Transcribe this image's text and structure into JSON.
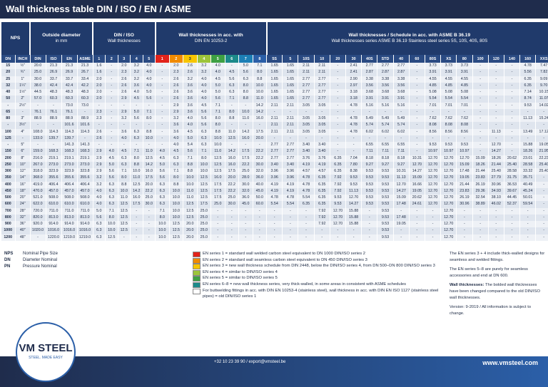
{
  "header": {
    "title": "Wall thickness table DIN / ISO / EN / ASME"
  },
  "table": {
    "groups": [
      {
        "title": "NPS"
      },
      {
        "title": "Outside diameter",
        "subtitle": "in mm"
      },
      {
        "title": "DIN / ISO",
        "subtitle": "Wall thicknesses"
      },
      {
        "title": "Wall thicknesses in acc. with",
        "subtitle": "DIN EN 10253-2"
      },
      {
        "title": "Wall thicknesses / Schedule in acc. with ASME B 36.19",
        "subtitle": "Wall thicknesses series ASME B 36.19 Stainless steel series 5S, 10S, 40S, 80S"
      }
    ],
    "columns": [
      "DN",
      "INCH",
      "DIN",
      "ISO",
      "EN",
      "ASME",
      "1",
      "2",
      "3",
      "4",
      "5",
      "1",
      "2",
      "3",
      "4",
      "5",
      "6",
      "7",
      "8",
      "5S",
      "5",
      "10S",
      "10",
      "20",
      "30",
      "40S",
      "STD",
      "40",
      "60",
      "80S",
      "XS",
      "80",
      "100",
      "120",
      "140",
      "160",
      "XXS"
    ],
    "rows": [
      [
        "15",
        "½\"",
        "20.0",
        "21.3",
        "21.3",
        "21.3",
        "1.6",
        "-",
        "2.0",
        "3.2",
        "4.0",
        "-",
        "2.0",
        "2.6",
        "3.2",
        "4.0",
        "-",
        "5.0",
        "7.1",
        "1.65",
        "1.65",
        "2.11",
        "2.11",
        "-",
        "2.41",
        "2.77",
        "2.77",
        "2.77",
        "-",
        "3.73",
        "3.73",
        "3.73",
        "-",
        "-",
        "-",
        "4.78",
        "7.47"
      ],
      [
        "20",
        "¾\"",
        "25.0",
        "26.9",
        "26.9",
        "26.7",
        "1.6",
        "-",
        "2.3",
        "3.2",
        "4.0",
        "-",
        "2.3",
        "2.6",
        "3.2",
        "4.0",
        "4.5",
        "5.6",
        "8.0",
        "1.65",
        "1.65",
        "2.11",
        "2.11",
        "-",
        "2.41",
        "2.87",
        "2.87",
        "2.87",
        "-",
        "3.91",
        "3.91",
        "3.91",
        "-",
        "-",
        "-",
        "5.56",
        "7.82"
      ],
      [
        "25",
        "1\"",
        "30.0",
        "33.7",
        "33.7",
        "33.4",
        "2.0",
        "-",
        "2.6",
        "3.2",
        "4.0",
        "-",
        "2.6",
        "3.2",
        "4.0",
        "4.5",
        "5.6",
        "6.3",
        "8.8",
        "1.65",
        "1.65",
        "2.77",
        "2.77",
        "-",
        "2.90",
        "3.38",
        "3.38",
        "3.38",
        "-",
        "4.55",
        "4.55",
        "4.55",
        "-",
        "-",
        "-",
        "6.35",
        "9.09"
      ],
      [
        "32",
        "1¼\"",
        "38.0",
        "42.4",
        "42.4",
        "42.2",
        "2.0",
        "-",
        "2.6",
        "3.6",
        "4.0",
        "-",
        "2.6",
        "3.6",
        "4.0",
        "5.0",
        "6.3",
        "8.0",
        "10.0",
        "1.65",
        "1.65",
        "2.77",
        "2.77",
        "-",
        "2.97",
        "3.56",
        "3.56",
        "3.56",
        "-",
        "4.85",
        "4.85",
        "4.85",
        "-",
        "-",
        "-",
        "6.35",
        "9.70"
      ],
      [
        "40",
        "1½\"",
        "44.5",
        "48.3",
        "48.3",
        "48.3",
        "2.0",
        "-",
        "2.6",
        "4.0",
        "5.0",
        "-",
        "2.6",
        "3.6",
        "4.0",
        "5.0",
        "6.3",
        "8.0",
        "10.0",
        "1.65",
        "1.65",
        "2.77",
        "2.77",
        "-",
        "3.18",
        "3.68",
        "3.68",
        "3.68",
        "-",
        "5.08",
        "5.08",
        "5.08",
        "-",
        "-",
        "-",
        "7.14",
        "10.15"
      ],
      [
        "50",
        "2\"",
        "57.0",
        "60.3",
        "60.3",
        "60.3",
        "2.0",
        "-",
        "2.9",
        "4.5",
        "5.6",
        "-",
        "2.6",
        "3.6",
        "4.0",
        "5.6",
        "7.1",
        "8.8",
        "11.0",
        "1.65",
        "1.65",
        "2.77",
        "2.77",
        "-",
        "3.18",
        "3.91",
        "3.91",
        "3.91",
        "-",
        "5.54",
        "5.54",
        "5.54",
        "-",
        "-",
        "-",
        "8.74",
        "11.07"
      ],
      [
        "-",
        "2½\"",
        "-",
        "-",
        "73.0",
        "73.0",
        "-",
        "-",
        "-",
        "-",
        "-",
        "-",
        "2.9",
        "3.6",
        "4.5",
        "7.1",
        "-",
        "-",
        "14.2",
        "2.11",
        "2.11",
        "3.05",
        "3.05",
        "-",
        "4.78",
        "5.16",
        "5.16",
        "5.16",
        "-",
        "7.01",
        "7.01",
        "7.01",
        "-",
        "-",
        "-",
        "9.53",
        "14.02"
      ],
      [
        "65",
        "-",
        "76.1",
        "76.1",
        "76.1",
        "-",
        "2.3",
        "-",
        "2.9",
        "5.0",
        "7.1",
        "-",
        "2.9",
        "3.6",
        "5.6",
        "7.1",
        "8.0",
        "10.0",
        "14.2",
        "-",
        "-",
        "-",
        "-",
        "-",
        "-",
        "-",
        "-",
        "-",
        "-",
        "-",
        "-",
        "-",
        "-",
        "-",
        "-",
        "-",
        "-"
      ],
      [
        "80",
        "3\"",
        "88.9",
        "88.9",
        "88.9",
        "88.9",
        "2.3",
        "-",
        "3.2",
        "5.6",
        "8.0",
        "-",
        "3.2",
        "4.0",
        "5.6",
        "8.0",
        "8.8",
        "11.0",
        "16.0",
        "2.11",
        "2.11",
        "3.05",
        "3.05",
        "-",
        "4.78",
        "5.49",
        "5.49",
        "5.49",
        "-",
        "7.62",
        "7.62",
        "7.62",
        "-",
        "-",
        "-",
        "11.13",
        "15.24"
      ],
      [
        "-",
        "3½\"",
        "-",
        "-",
        "101.6",
        "101.6",
        "-",
        "-",
        "-",
        "-",
        "-",
        "-",
        "3.6",
        "4.0",
        "5.6",
        "8.0",
        "-",
        "-",
        "-",
        "2.11",
        "2.11",
        "3.05",
        "3.05",
        "-",
        "4.78",
        "5.74",
        "5.74",
        "5.74",
        "-",
        "8.08",
        "8.08",
        "8.08",
        "-",
        "-",
        "-",
        "-",
        "-"
      ],
      [
        "100",
        "4\"",
        "108.0",
        "114.3",
        "114.3",
        "114.3",
        "2.6",
        "-",
        "3.6",
        "6.3",
        "8.8",
        "-",
        "3.6",
        "4.5",
        "6.3",
        "8.8",
        "11.0",
        "14.2",
        "17.5",
        "2.11",
        "2.11",
        "3.05",
        "3.05",
        "-",
        "4.78",
        "6.02",
        "6.02",
        "6.02",
        "-",
        "8.56",
        "8.56",
        "8.56",
        "-",
        "11.13",
        "-",
        "13.49",
        "17.12"
      ],
      [
        "125",
        "-",
        "133.0",
        "139.7",
        "139.7",
        "-",
        "2.6",
        "-",
        "4.0",
        "6.3",
        "10.0",
        "-",
        "4.0",
        "5.0",
        "6.3",
        "10.0",
        "12.5",
        "16.0",
        "20.0",
        "-",
        "-",
        "-",
        "-",
        "-",
        "-",
        "-",
        "-",
        "-",
        "-",
        "-",
        "-",
        "-",
        "-",
        "-",
        "-",
        "-",
        "-"
      ],
      [
        "-",
        "5\"",
        "-",
        "-",
        "141.3",
        "141.3",
        "-",
        "-",
        "-",
        "-",
        "-",
        "-",
        "4.0",
        "5.4",
        "6.3",
        "10.0",
        "-",
        "-",
        "-",
        "2.77",
        "2.77",
        "3.40",
        "3.40",
        "-",
        "-",
        "6.55",
        "6.55",
        "6.55",
        "-",
        "9.53",
        "9.53",
        "9.53",
        "-",
        "12.70",
        "-",
        "15.88",
        "19.05"
      ],
      [
        "150",
        "6\"",
        "159.0",
        "168.3",
        "168.3",
        "168.3",
        "2.9",
        "4.0",
        "4.5",
        "7.1",
        "11.0",
        "4.0",
        "4.5",
        "5.6",
        "7.1",
        "11.0",
        "14.2",
        "17.5",
        "22.2",
        "2.77",
        "2.77",
        "3.40",
        "3.40",
        "-",
        "-",
        "7.11",
        "7.11",
        "7.11",
        "-",
        "10.97",
        "10.97",
        "10.97",
        "-",
        "14.27",
        "-",
        "18.26",
        "21.95"
      ],
      [
        "200",
        "8\"",
        "216.0",
        "219.1",
        "219.1",
        "219.1",
        "2.9",
        "4.5",
        "6.3",
        "8.0",
        "12.5",
        "4.5",
        "6.3",
        "7.1",
        "8.0",
        "12.5",
        "16.0",
        "17.5",
        "22.2",
        "2.77",
        "2.77",
        "3.76",
        "3.76",
        "6.35",
        "7.04",
        "8.18",
        "8.18",
        "8.18",
        "10.31",
        "12.70",
        "12.70",
        "12.70",
        "15.09",
        "18.26",
        "20.62",
        "23.01",
        "22.23"
      ],
      [
        "250",
        "10\"",
        "267.0",
        "273.0",
        "273.0",
        "273.0",
        "2.9",
        "5.0",
        "6.3",
        "8.8",
        "14.2",
        "5.0",
        "6.3",
        "8.8",
        "10.0",
        "12.5",
        "16.0",
        "22.2",
        "30.0",
        "3.40",
        "3.40",
        "4.19",
        "4.19",
        "6.35",
        "7.80",
        "9.27",
        "9.27",
        "9.27",
        "12.70",
        "12.70",
        "12.70",
        "15.09",
        "18.26",
        "21.44",
        "25.40",
        "28.58",
        "25.40"
      ],
      [
        "300",
        "12\"",
        "318.0",
        "323.9",
        "323.9",
        "323.8",
        "2.9",
        "5.6",
        "7.1",
        "10.0",
        "16.0",
        "5.6",
        "7.1",
        "8.8",
        "10.0",
        "12.5",
        "17.5",
        "25.0",
        "32.0",
        "3.96",
        "3.96",
        "4.57",
        "4.57",
        "6.35",
        "8.38",
        "9.53",
        "9.53",
        "10.31",
        "14.27",
        "12.70",
        "12.70",
        "17.48",
        "21.44",
        "25.40",
        "28.58",
        "33.32",
        "25.40"
      ],
      [
        "350",
        "14\"",
        "368.0",
        "355.6",
        "355.6",
        "355.6",
        "3.2",
        "5.6",
        "8.0",
        "11.0",
        "17.5",
        "5.6",
        "8.0",
        "10.0",
        "12.5",
        "16.0",
        "20.0",
        "28.0",
        "36.0",
        "3.96",
        "3.96",
        "4.78",
        "6.35",
        "7.92",
        "9.53",
        "9.53",
        "9.53",
        "11.13",
        "15.09",
        "12.70",
        "12.70",
        "19.05",
        "23.83",
        "27.79",
        "31.75",
        "35.71",
        "-"
      ],
      [
        "400",
        "16\"",
        "419.0",
        "406.4",
        "406.4",
        "406.4",
        "3.2",
        "6.3",
        "8.8",
        "12.5",
        "20.0",
        "6.3",
        "8.8",
        "10.0",
        "12.5",
        "17.5",
        "22.2",
        "30.0",
        "40.0",
        "4.19",
        "4.19",
        "4.78",
        "6.35",
        "7.92",
        "9.53",
        "9.53",
        "9.53",
        "12.70",
        "16.66",
        "12.70",
        "12.70",
        "21.44",
        "26.19",
        "30.96",
        "36.53",
        "40.49",
        "-"
      ],
      [
        "450",
        "18\"",
        "470.0",
        "457.0",
        "457.0",
        "457.0",
        "4.0",
        "6.3",
        "10.0",
        "14.2",
        "22.2",
        "6.3",
        "10.0",
        "11.0",
        "12.5",
        "17.5",
        "22.2",
        "32.0",
        "45.0",
        "4.19",
        "4.19",
        "4.78",
        "6.35",
        "7.92",
        "11.13",
        "9.53",
        "9.53",
        "14.27",
        "19.05",
        "12.70",
        "12.70",
        "23.83",
        "29.36",
        "34.93",
        "39.67",
        "45.24",
        "-"
      ],
      [
        "500",
        "20\"",
        "521.0",
        "508.0",
        "508.0",
        "508.0",
        "4.0",
        "6.3",
        "11.0",
        "16.0",
        "25.0",
        "6.3",
        "10.0",
        "11.0",
        "12.5",
        "17.5",
        "25.0",
        "36.0",
        "50.0",
        "4.78",
        "4.78",
        "5.54",
        "6.35",
        "9.53",
        "12.70",
        "9.53",
        "9.53",
        "15.09",
        "20.62",
        "12.70",
        "12.70",
        "26.19",
        "32.54",
        "38.10",
        "44.45",
        "50.01",
        "-"
      ],
      [
        "600",
        "24\"",
        "622.0",
        "610.0",
        "610.0",
        "610.0",
        "4.0",
        "6.3",
        "12.5",
        "17.5",
        "30.0",
        "6.3",
        "10.0",
        "12.5",
        "17.5",
        "25.0",
        "30.0",
        "45.0",
        "60.0",
        "5.54",
        "5.54",
        "6.35",
        "6.35",
        "9.53",
        "14.27",
        "9.53",
        "9.53",
        "17.48",
        "24.61",
        "12.70",
        "12.70",
        "30.96",
        "38.89",
        "46.02",
        "52.37",
        "59.54",
        "-"
      ],
      [
        "700",
        "28\"",
        "720.0",
        "711.0",
        "711.0",
        "711.0",
        "5.0",
        "7.1",
        "12.5",
        "-",
        "-",
        "7.1",
        "10.0",
        "12.5",
        "25.0",
        "-",
        "-",
        "-",
        "-",
        "-",
        "-",
        "-",
        "7.92",
        "12.70",
        "15.88",
        "-",
        "9.53",
        "-",
        "-",
        "-",
        "12.70",
        "-",
        "-",
        "-",
        "-",
        "-",
        "-"
      ],
      [
        "800",
        "32\"",
        "820.0",
        "813.0",
        "813.0",
        "813.0",
        "5.6",
        "8.0",
        "12.5",
        "-",
        "-",
        "8.0",
        "10.0",
        "12.5",
        "25.0",
        "-",
        "-",
        "-",
        "-",
        "-",
        "-",
        "-",
        "7.92",
        "12.70",
        "15.88",
        "-",
        "9.53",
        "17.48",
        "-",
        "-",
        "12.70",
        "-",
        "-",
        "-",
        "-",
        "-",
        "-"
      ],
      [
        "900",
        "36\"",
        "920.0",
        "914.0",
        "914.0",
        "914.0",
        "6.3",
        "10.0",
        "12.5",
        "-",
        "-",
        "10.0",
        "12.5",
        "20.0",
        "25.0",
        "-",
        "-",
        "-",
        "-",
        "-",
        "-",
        "-",
        "7.92",
        "12.70",
        "15.88",
        "-",
        "9.53",
        "19.05",
        "-",
        "-",
        "12.70",
        "-",
        "-",
        "-",
        "-",
        "-",
        "-"
      ],
      [
        "1000",
        "40\"",
        "1020.0",
        "1016.0",
        "1016.0",
        "1016.0",
        "6.3",
        "10.0",
        "12.5",
        "-",
        "-",
        "10.0",
        "12.5",
        "20.0",
        "25.0",
        "-",
        "-",
        "-",
        "-",
        "-",
        "-",
        "-",
        "-",
        "-",
        "-",
        "-",
        "9.53",
        "-",
        "-",
        "-",
        "12.70",
        "-",
        "-",
        "-",
        "-",
        "-",
        "-"
      ],
      [
        "1200",
        "48\"",
        "-",
        "1220.0",
        "1219.0",
        "1219.0",
        "6.3",
        "12.5",
        "-",
        "-",
        "-",
        "10.0",
        "12.5",
        "20.0",
        "25.0",
        "-",
        "-",
        "-",
        "-",
        "-",
        "-",
        "-",
        "-",
        "-",
        "-",
        "-",
        "9.53",
        "-",
        "-",
        "-",
        "12.70",
        "-",
        "-",
        "-",
        "-",
        "-",
        "-"
      ]
    ]
  },
  "abbreviations": [
    {
      "abbr": "NPS",
      "text": "Nominal Pipe Size"
    },
    {
      "abbr": "DN",
      "text": "Diameter Nominal"
    },
    {
      "abbr": "PN",
      "text": "Pressure Nominal"
    }
  ],
  "en_series_notes": [
    "EN series 1 = standard wall welded carbon steel equivalent to DN 1000 DIN/ISO series 2",
    "EN series 2 = standard wall seamless carbon steel equivalent to DN 450 DIN/ISO series 3",
    "EN series 3 = new wall thickness schedule from DIN 2448, below the DIN/ISO series 4, from DN 500–DN 800 DIN/ISO series 3",
    "EN series 4 = similar to DIN/ISO series 4",
    "EN series 5 = similar to DIN/ISO series 5",
    "EN series 6–8 = new wall thickness series, very thick-walled, in some areas in consistent with ASME schedules",
    "For buttwelding fittings in acc. with DIN EN 10253-4 (stainless steel), wall thickness in acc. with DIN EN ISO 1127 (stainless steel pipes) = old DIN/ISO series 1"
  ],
  "notes": [
    "The EN series 3 + 4 include thick-walled designs for seamless and welded fittings.",
    "The EN series 5–8 are purely for seamless accessories and end at DN 600.",
    {
      "bold": "Wall thicknesses:",
      "text": "The bolded wall thicknesses have been changed compared to the old DIN/ISO wall thicknesses."
    },
    "Version: 9-2019 / All information is subject to change."
  ],
  "footer": {
    "brand": "VM STEEL",
    "tagline": "STEEL. MADE EASY",
    "contact": "+32 10 23 39 90 / export@vmsteel.be",
    "website": "www.vmsteel.com"
  }
}
